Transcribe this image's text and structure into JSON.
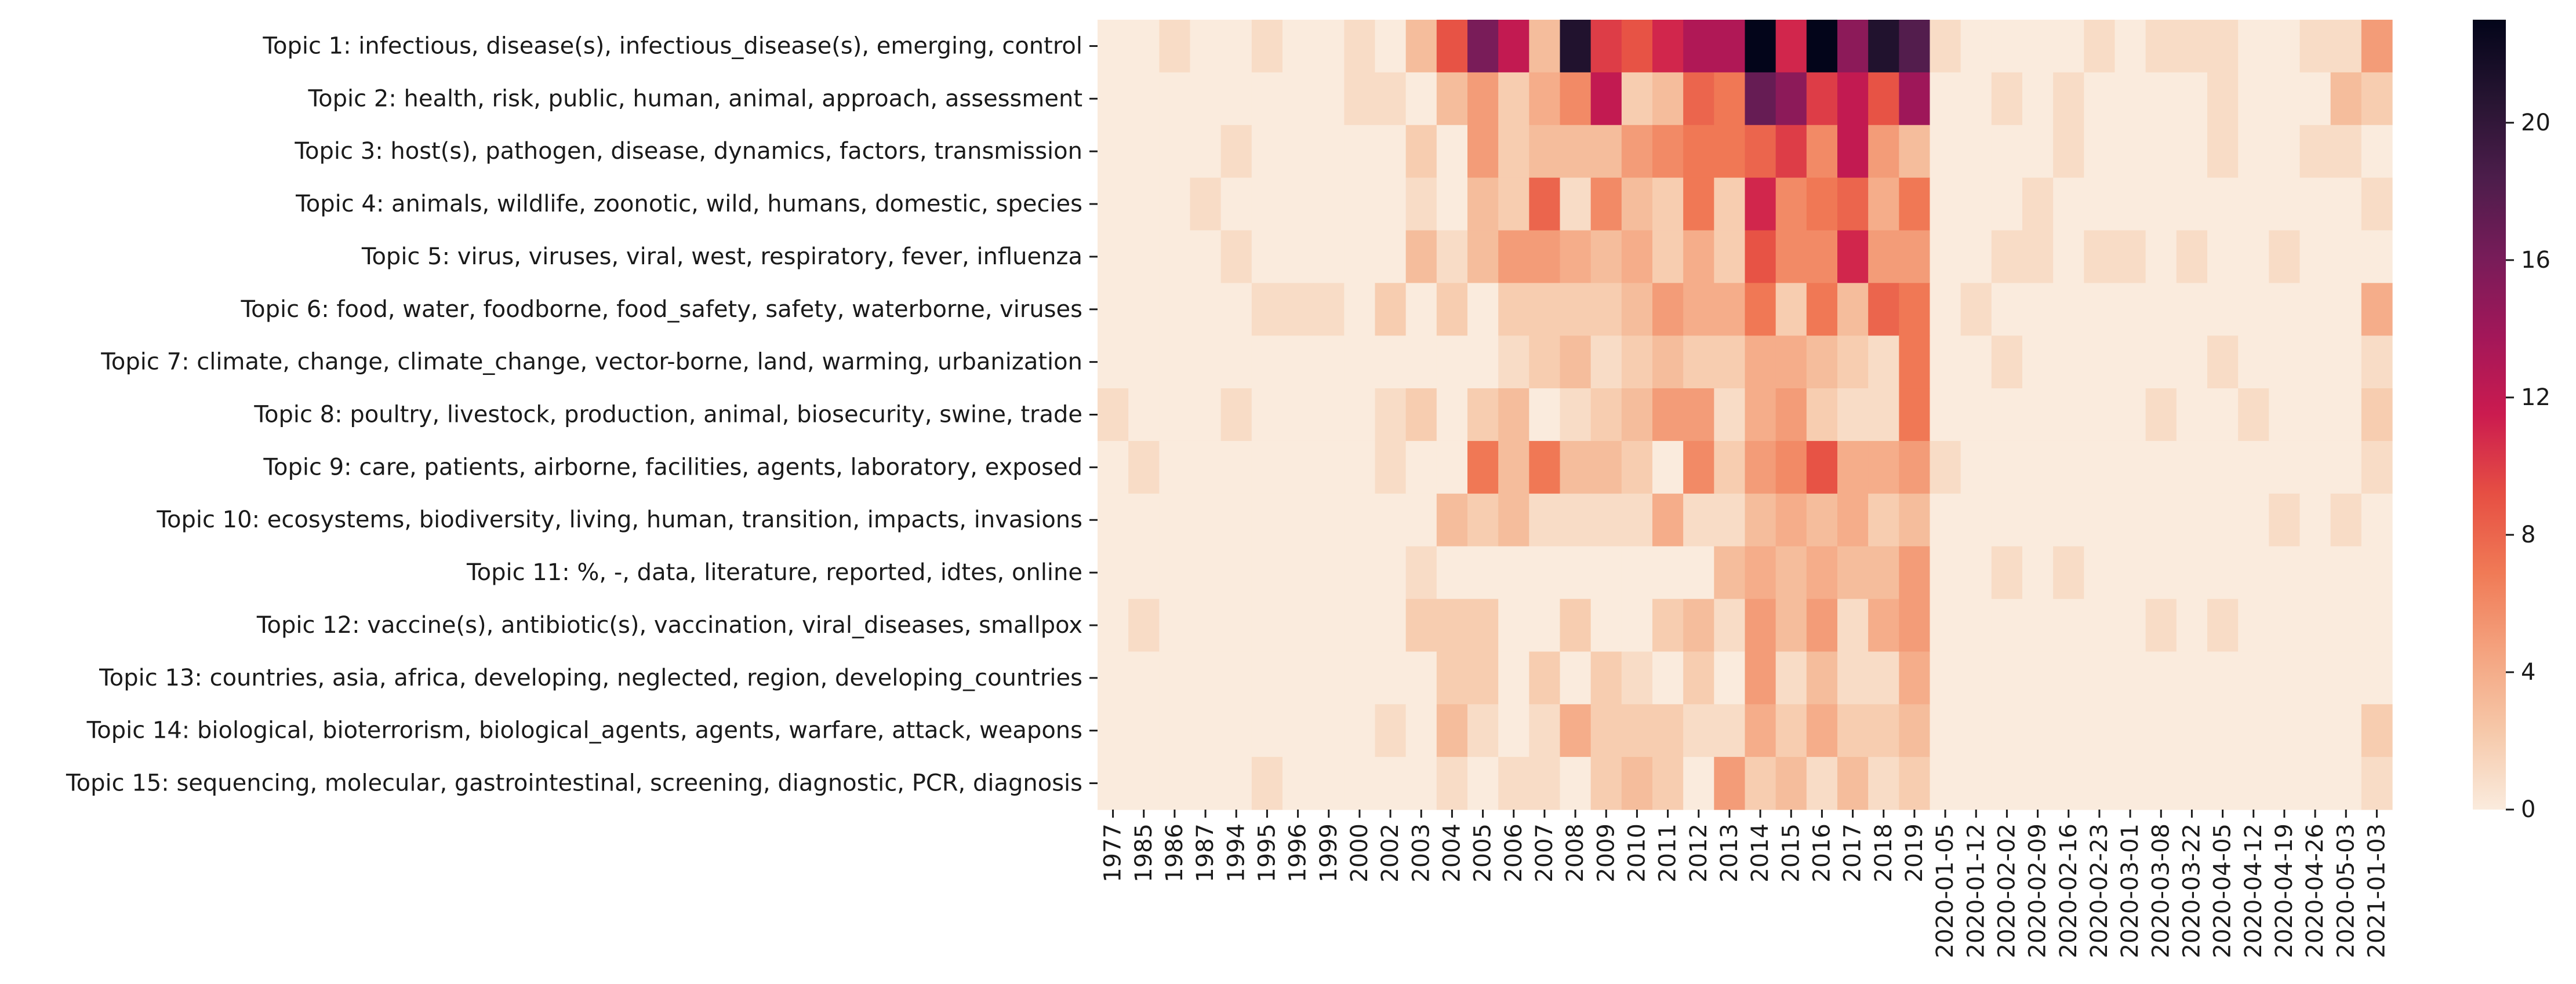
{
  "chart_data": {
    "type": "heatmap",
    "title": "",
    "xlabel": "",
    "ylabel": "",
    "x": [
      "1977",
      "1985",
      "1986",
      "1987",
      "1994",
      "1995",
      "1996",
      "1999",
      "2000",
      "2002",
      "2003",
      "2004",
      "2005",
      "2006",
      "2007",
      "2008",
      "2009",
      "2010",
      "2011",
      "2012",
      "2013",
      "2014",
      "2015",
      "2016",
      "2017",
      "2018",
      "2019",
      "2020-01-05",
      "2020-01-12",
      "2020-02-02",
      "2020-02-09",
      "2020-02-16",
      "2020-02-23",
      "2020-03-01",
      "2020-03-08",
      "2020-03-22",
      "2020-04-05",
      "2020-04-12",
      "2020-04-19",
      "2020-04-26",
      "2020-05-03",
      "2021-01-03"
    ],
    "y": [
      "Topic 1: infectious, disease(s), infectious_disease(s), emerging, control",
      "Topic 2: health, risk, public, human, animal, approach, assessment",
      "Topic 3: host(s), pathogen, disease, dynamics, factors, transmission",
      "Topic 4: animals, wildlife, zoonotic, wild, humans, domestic, species",
      "Topic 5: virus, viruses, viral, west, respiratory, fever, influenza",
      "Topic 6: food, water, foodborne, food_safety, safety, waterborne, viruses",
      "Topic 7: climate, change, climate_change, vector-borne, land, warming, urbanization",
      "Topic 8: poultry, livestock, production, animal, biosecurity, swine, trade",
      "Topic 9: care, patients, airborne, facilities, agents, laboratory, exposed",
      "Topic 10: ecosystems, biodiversity, living, human, transition, impacts, invasions",
      "Topic 11: %, -, data, literature, reported, idtes, online",
      "Topic 12: vaccine(s), antibiotic(s), vaccination, viral_diseases, smallpox",
      "Topic 13: countries, asia, africa, developing, neglected, region, developing_countries",
      "Topic 14: biological, bioterrorism, biological_agents, agents, warfare, attack, weapons",
      "Topic 15: sequencing, molecular, gastrointestinal, screening, diagnostic, PCR, diagnosis"
    ],
    "values": [
      [
        0,
        0,
        1,
        0,
        0,
        1,
        0,
        0,
        1,
        0,
        3,
        9,
        16,
        12,
        3,
        21,
        10,
        9,
        11,
        13,
        13,
        23,
        11,
        23,
        15,
        21,
        18,
        1,
        0,
        0,
        0,
        0,
        1,
        0,
        1,
        1,
        1,
        0,
        0,
        1,
        1,
        5
      ],
      [
        0,
        0,
        0,
        0,
        0,
        0,
        0,
        0,
        1,
        1,
        0,
        3,
        5,
        2,
        4,
        6,
        12,
        2,
        3,
        8,
        7,
        17,
        15,
        10,
        12,
        9,
        14,
        0,
        0,
        1,
        0,
        1,
        0,
        0,
        0,
        0,
        1,
        0,
        0,
        0,
        3,
        2
      ],
      [
        0,
        0,
        0,
        0,
        1,
        0,
        0,
        0,
        0,
        0,
        2,
        0,
        5,
        2,
        3,
        3,
        3,
        5,
        6,
        7,
        7,
        8,
        10,
        6,
        12,
        5,
        3,
        0,
        0,
        0,
        0,
        1,
        0,
        0,
        0,
        0,
        1,
        0,
        0,
        1,
        1,
        0
      ],
      [
        0,
        0,
        0,
        1,
        0,
        0,
        0,
        0,
        0,
        0,
        1,
        0,
        3,
        2,
        8,
        1,
        6,
        3,
        2,
        7,
        2,
        11,
        6,
        7,
        8,
        4,
        7,
        0,
        0,
        0,
        1,
        0,
        0,
        0,
        0,
        0,
        0,
        0,
        0,
        0,
        0,
        1
      ],
      [
        0,
        0,
        0,
        0,
        1,
        0,
        0,
        0,
        0,
        0,
        3,
        1,
        3,
        5,
        5,
        4,
        3,
        4,
        2,
        4,
        2,
        9,
        6,
        6,
        11,
        5,
        5,
        0,
        0,
        1,
        1,
        0,
        1,
        1,
        0,
        1,
        0,
        0,
        1,
        0,
        0,
        0
      ],
      [
        0,
        0,
        0,
        0,
        0,
        1,
        1,
        1,
        0,
        2,
        0,
        2,
        0,
        2,
        2,
        2,
        2,
        3,
        5,
        4,
        4,
        7,
        2,
        7,
        3,
        8,
        7,
        0,
        1,
        0,
        0,
        0,
        0,
        0,
        0,
        0,
        0,
        0,
        0,
        0,
        0,
        4
      ],
      [
        0,
        0,
        0,
        0,
        0,
        0,
        0,
        0,
        0,
        0,
        0,
        0,
        0,
        1,
        2,
        3,
        1,
        2,
        3,
        2,
        2,
        4,
        4,
        3,
        2,
        1,
        7,
        0,
        0,
        1,
        0,
        0,
        0,
        0,
        0,
        0,
        1,
        0,
        0,
        0,
        0,
        1
      ],
      [
        1,
        0,
        0,
        0,
        1,
        0,
        0,
        0,
        0,
        1,
        2,
        0,
        2,
        3,
        0,
        1,
        2,
        3,
        5,
        5,
        1,
        4,
        5,
        2,
        1,
        1,
        7,
        0,
        0,
        0,
        0,
        0,
        0,
        0,
        1,
        0,
        0,
        1,
        0,
        0,
        0,
        2
      ],
      [
        0,
        1,
        0,
        0,
        0,
        0,
        0,
        0,
        0,
        1,
        0,
        0,
        7,
        3,
        7,
        3,
        3,
        2,
        0,
        6,
        2,
        5,
        6,
        9,
        4,
        4,
        5,
        1,
        0,
        0,
        0,
        0,
        0,
        0,
        0,
        0,
        0,
        0,
        0,
        0,
        0,
        1
      ],
      [
        0,
        0,
        0,
        0,
        0,
        0,
        0,
        0,
        0,
        0,
        0,
        3,
        2,
        3,
        1,
        1,
        1,
        1,
        4,
        1,
        1,
        3,
        4,
        3,
        4,
        2,
        3,
        0,
        0,
        0,
        0,
        0,
        0,
        0,
        0,
        0,
        0,
        0,
        1,
        0,
        1,
        0
      ],
      [
        0,
        0,
        0,
        0,
        0,
        0,
        0,
        0,
        0,
        0,
        1,
        0,
        0,
        0,
        0,
        0,
        0,
        0,
        0,
        0,
        3,
        4,
        3,
        4,
        3,
        3,
        5,
        0,
        0,
        1,
        0,
        1,
        0,
        0,
        0,
        0,
        0,
        0,
        0,
        0,
        0,
        0
      ],
      [
        0,
        1,
        0,
        0,
        0,
        0,
        0,
        0,
        0,
        0,
        2,
        2,
        2,
        0,
        0,
        2,
        0,
        0,
        2,
        3,
        1,
        5,
        3,
        5,
        1,
        4,
        5,
        0,
        0,
        0,
        0,
        0,
        0,
        0,
        1,
        0,
        1,
        0,
        0,
        0,
        0,
        0
      ],
      [
        0,
        0,
        0,
        0,
        0,
        0,
        0,
        0,
        0,
        0,
        0,
        2,
        2,
        0,
        2,
        0,
        2,
        1,
        0,
        2,
        0,
        5,
        1,
        3,
        1,
        1,
        4,
        0,
        0,
        0,
        0,
        0,
        0,
        0,
        0,
        0,
        0,
        0,
        0,
        0,
        0,
        0
      ],
      [
        0,
        0,
        0,
        0,
        0,
        0,
        0,
        0,
        0,
        1,
        0,
        3,
        1,
        0,
        1,
        4,
        2,
        2,
        2,
        1,
        1,
        4,
        2,
        4,
        2,
        2,
        3,
        0,
        0,
        0,
        0,
        0,
        0,
        0,
        0,
        0,
        0,
        0,
        0,
        0,
        0,
        2
      ],
      [
        0,
        0,
        0,
        0,
        0,
        1,
        0,
        0,
        0,
        0,
        0,
        1,
        0,
        1,
        1,
        0,
        2,
        3,
        2,
        0,
        5,
        2,
        3,
        1,
        3,
        1,
        2,
        0,
        0,
        0,
        0,
        0,
        0,
        0,
        0,
        0,
        0,
        0,
        0,
        0,
        0,
        1
      ]
    ],
    "vmin": 0,
    "vmax": 23,
    "colormap": "rocket_r",
    "colorbar_ticks": [
      0,
      4,
      8,
      12,
      16,
      20
    ],
    "colors": {
      "background": "#ffffff",
      "text": "#1a1a1a",
      "low": "#faebdd",
      "high": "#03051a"
    },
    "grid": false,
    "colorbar_placement": "right"
  }
}
